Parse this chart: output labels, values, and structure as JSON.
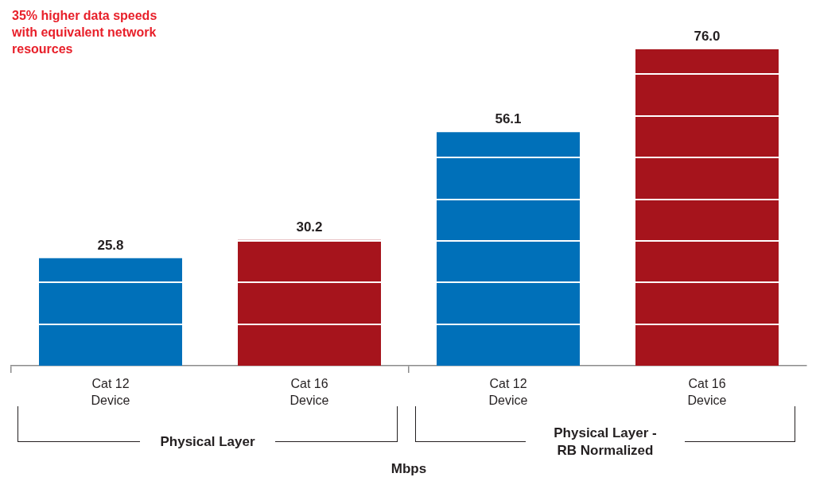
{
  "chart_data": {
    "type": "bar",
    "title": "35% higher data speeds with equivalent network resources",
    "xlabel": "Mbps",
    "annotations": [
      "Physical Layer",
      "Physical Layer - RB Normalized"
    ],
    "categories": [
      "Cat 12 Device",
      "Cat 16 Device",
      "Cat 12 Device",
      "Cat 16 Device"
    ],
    "values": [
      25.8,
      30.2,
      56.1,
      76.0
    ],
    "colors": [
      "#0070b9",
      "#a6141c",
      "#0070b9",
      "#a6141c"
    ],
    "value_labels": [
      "25.8",
      "30.2",
      "56.1",
      "76.0"
    ],
    "yticks": [
      {
        "value": 10,
        "label": null
      },
      {
        "value": 20,
        "label": null
      },
      {
        "value": 30,
        "label": null
      },
      {
        "value": 40,
        "label": null
      },
      {
        "value": 50,
        "label": null
      },
      {
        "value": 60,
        "label": null
      },
      {
        "value": 70,
        "label": null
      }
    ],
    "grid": "y",
    "tick_labels": "x",
    "legend": false
  }
}
